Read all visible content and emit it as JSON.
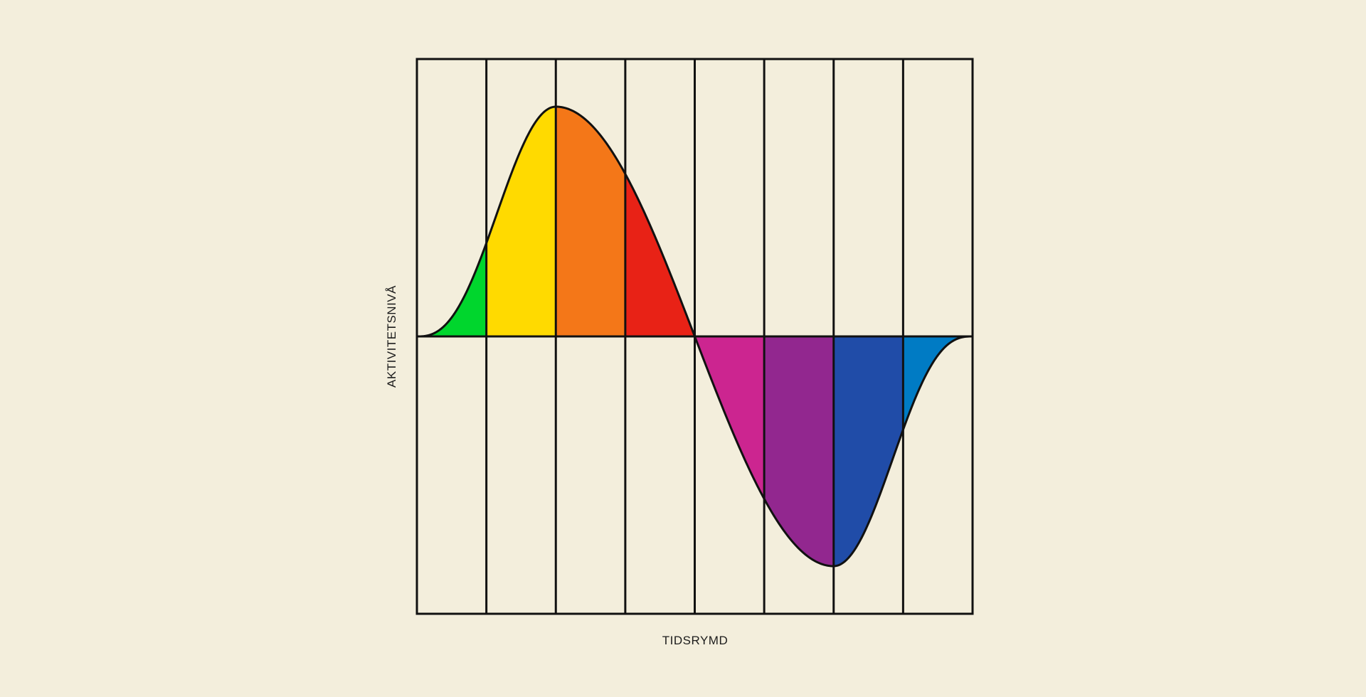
{
  "diagram": {
    "xlabel": "TIDSRYMD",
    "ylabel": "AKTIVITETSNIVÅ",
    "colors": {
      "background": "#F3EEDC",
      "stroke": "#111111",
      "segments": [
        "#00D62D",
        "#FFDA00",
        "#F47718",
        "#E82216",
        "#CC2590",
        "#92278F",
        "#204CA8",
        "#007BC4"
      ]
    }
  }
}
